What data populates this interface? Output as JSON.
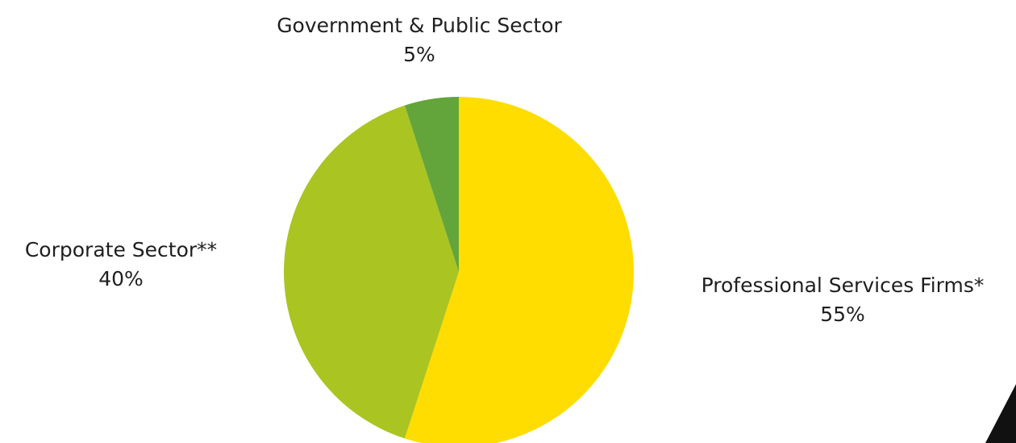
{
  "chart_data": {
    "type": "pie",
    "slices": [
      {
        "label": "Professional Services Firms*",
        "value": 55,
        "value_label": "55%",
        "color": "#FFDD00"
      },
      {
        "label": "Corporate Sector**",
        "value": 40,
        "value_label": "40%",
        "color": "#AAC422"
      },
      {
        "label": "Government & Public Sector",
        "value": 5,
        "value_label": "5%",
        "color": "#63A53A"
      }
    ],
    "start_angle_deg": 0,
    "direction": "clockwise",
    "legend": "none"
  },
  "decoration": {
    "corner_color": "#111111"
  }
}
